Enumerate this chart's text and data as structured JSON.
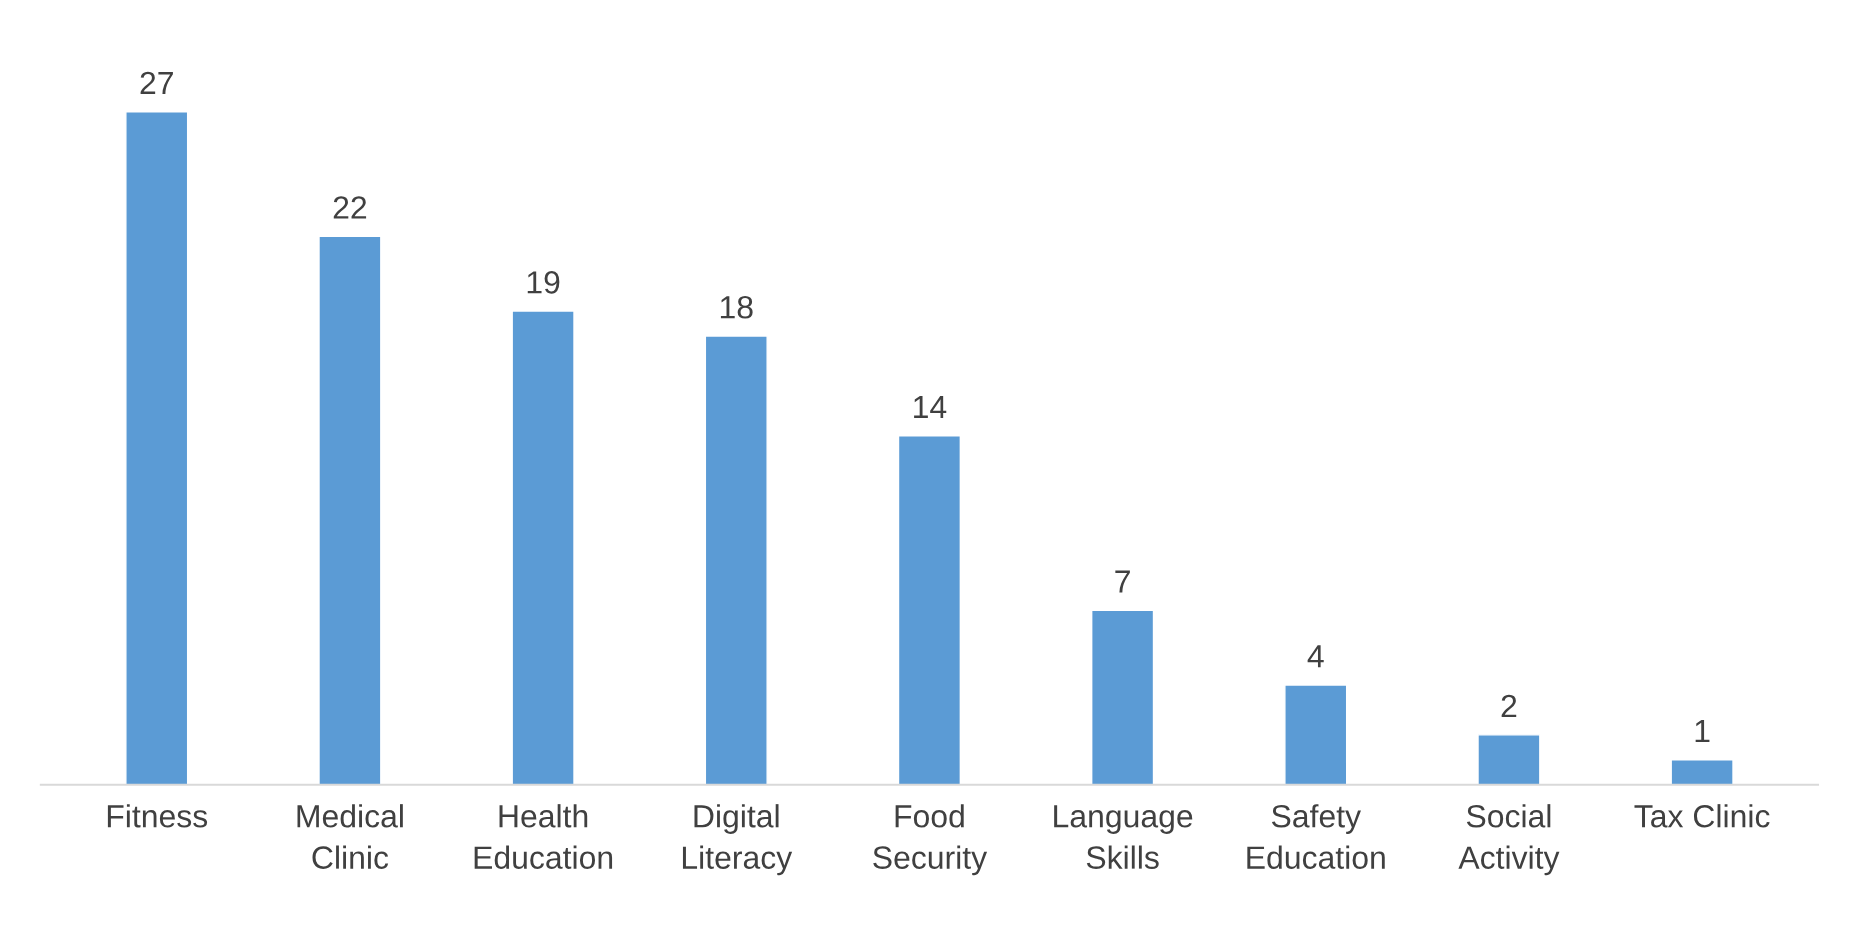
{
  "chart_data": {
    "type": "bar",
    "categories": [
      "Fitness",
      "Medical Clinic",
      "Health Education",
      "Digital Literacy",
      "Food Security",
      "Language Skills",
      "Safety Education",
      "Social Activity",
      "Tax Clinic"
    ],
    "values": [
      27,
      22,
      19,
      18,
      14,
      7,
      4,
      2,
      1
    ],
    "color": "#5b9bd5",
    "data_labels": true,
    "grid": false,
    "legend": false,
    "tick_labels": "x"
  }
}
